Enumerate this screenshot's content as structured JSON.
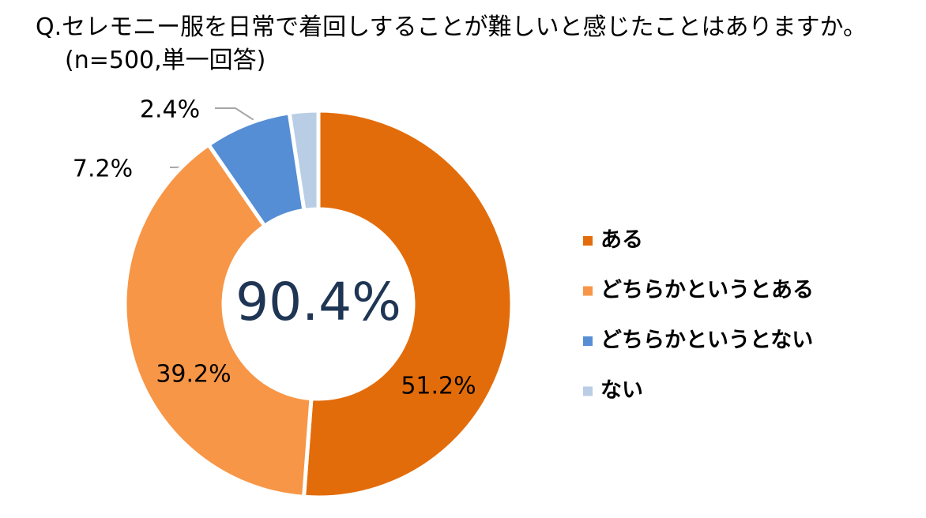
{
  "chart_data": {
    "type": "donut",
    "title": "Q.セレモニー服を日常で着回しすることが難しいと感じたことはありますか。(n=500,単一回答)",
    "annotation": "90.4%",
    "categories": [
      "ある",
      "どちらかというとある",
      "どちらかというとない",
      "ない"
    ],
    "values": [
      51.2,
      39.2,
      7.2,
      2.4
    ],
    "value_labels": [
      "51.2%",
      "39.2%",
      "7.2%",
      "2.4%"
    ],
    "colors": [
      "#e36c0a",
      "#f79646",
      "#558ed5",
      "#b9cde5"
    ],
    "legend": "right"
  }
}
